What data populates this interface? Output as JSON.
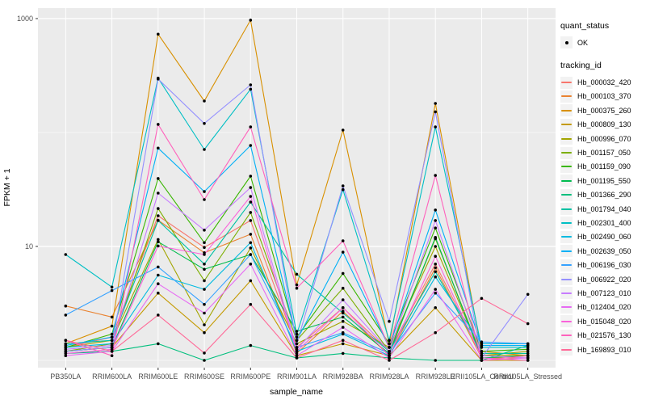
{
  "chart_data": {
    "type": "line",
    "title": "",
    "xlabel": "sample_name",
    "ylabel": "FPKM + 1",
    "y_scale": "log10",
    "ylim": [
      0.87,
      1230
    ],
    "y_major_breaks": [
      10,
      1000
    ],
    "y_minor_breaks": [
      1,
      100
    ],
    "y_tick_labels": [
      "10",
      "1000"
    ],
    "grid": true,
    "point_color": "#000000",
    "panel_bg": "#EBEBEB",
    "categories": [
      "PB350LA",
      "RRIM600LA",
      "RRIM600LE",
      "RRIM600SE",
      "RRIM600PE",
      "RRIM901LA",
      "RRIM928BA",
      "RRIM928LA",
      "RRIM928LE",
      "RRII105LA_Control",
      "RRII105LA_Stressed"
    ],
    "series": [
      {
        "name": "Hb_000032_420",
        "color": "#F8766D",
        "values": [
          1.3,
          1.6,
          18.6,
          9.8,
          16.9,
          1.3,
          2.9,
          1.2,
          7.0,
          1.1,
          1.1
        ]
      },
      {
        "name": "Hb_000103_370",
        "color": "#EA8331",
        "values": [
          3.0,
          2.4,
          17.0,
          8.8,
          12.8,
          1.15,
          2.7,
          1.1,
          6.5,
          1.05,
          1.05
        ]
      },
      {
        "name": "Hb_000375_260",
        "color": "#D89000",
        "values": [
          1.4,
          2.0,
          730,
          189,
          970,
          4.6,
          105,
          1.4,
          180,
          1.2,
          1.1
        ]
      },
      {
        "name": "Hb_000809_130",
        "color": "#C49A00",
        "values": [
          1.2,
          1.3,
          3.9,
          1.75,
          5.0,
          1.1,
          1.4,
          1.1,
          2.9,
          1.0,
          1.0
        ]
      },
      {
        "name": "Hb_000996_070",
        "color": "#A3A500",
        "values": [
          1.3,
          1.5,
          11.5,
          2.05,
          9.7,
          1.4,
          2.2,
          1.3,
          10.0,
          1.1,
          1.2
        ]
      },
      {
        "name": "Hb_001157_050",
        "color": "#7CAE00",
        "values": [
          1.2,
          1.4,
          21.5,
          5.0,
          19.9,
          1.5,
          4.3,
          1.2,
          11.7,
          1.1,
          1.1
        ]
      },
      {
        "name": "Hb_001159_090",
        "color": "#39B600",
        "values": [
          1.3,
          1.7,
          39.5,
          10.8,
          41.4,
          1.6,
          5.8,
          1.4,
          14.5,
          1.2,
          1.25
        ]
      },
      {
        "name": "Hb_001195_550",
        "color": "#00BB4E",
        "values": [
          1.2,
          1.3,
          11.0,
          6.3,
          8.5,
          1.8,
          2.4,
          1.15,
          12.0,
          1.05,
          1.1
        ]
      },
      {
        "name": "Hb_001366_290",
        "color": "#00BF7D",
        "values": [
          1.15,
          1.2,
          1.4,
          1.0,
          1.35,
          1.05,
          1.15,
          1.05,
          1.0,
          1.0,
          1.35
        ]
      },
      {
        "name": "Hb_001794_040",
        "color": "#00C1A3",
        "values": [
          1.4,
          1.5,
          16.9,
          7.0,
          24.5,
          5.7,
          2.6,
          1.2,
          6.0,
          1.15,
          1.15
        ]
      },
      {
        "name": "Hb_002301_400",
        "color": "#00BFC4",
        "values": [
          8.5,
          4.4,
          300,
          71,
          240,
          1.7,
          31.5,
          1.5,
          112,
          1.3,
          1.3
        ]
      },
      {
        "name": "Hb_002490_060",
        "color": "#00BAE0",
        "values": [
          1.3,
          1.4,
          5.6,
          4.2,
          10.8,
          1.2,
          1.7,
          1.1,
          5.4,
          1.4,
          1.4
        ]
      },
      {
        "name": "Hb_002639_050",
        "color": "#00B0F6",
        "values": [
          1.35,
          1.6,
          73,
          30.3,
          77,
          1.5,
          8.9,
          1.3,
          20.9,
          1.35,
          1.35
        ]
      },
      {
        "name": "Hb_006196_030",
        "color": "#35A2FF",
        "values": [
          2.5,
          4.1,
          6.6,
          3.1,
          8.5,
          1.3,
          1.75,
          1.15,
          3.9,
          1.45,
          1.4
        ]
      },
      {
        "name": "Hb_006922_020",
        "color": "#9590FF",
        "values": [
          1.2,
          1.3,
          295,
          120,
          262,
          1.4,
          34,
          2.2,
          152,
          1.05,
          3.8
        ]
      },
      {
        "name": "Hb_007123_010",
        "color": "#C77CFF",
        "values": [
          1.25,
          1.35,
          29.4,
          13.9,
          32.9,
          1.25,
          3.4,
          1.2,
          16.9,
          1.1,
          1.05
        ]
      },
      {
        "name": "Hb_012404_020",
        "color": "#E76BF3",
        "values": [
          1.1,
          1.2,
          4.7,
          2.6,
          7.0,
          1.1,
          1.95,
          1.05,
          4.2,
          1.0,
          1.05
        ]
      },
      {
        "name": "Hb_015048_020",
        "color": "#FA62DB",
        "values": [
          1.15,
          1.25,
          10.1,
          8.5,
          27.5,
          1.2,
          2.9,
          1.1,
          8.2,
          1.05,
          1.0
        ]
      },
      {
        "name": "Hb_021576_130",
        "color": "#FF62BC",
        "values": [
          1.5,
          1.1,
          118,
          25.8,
          112,
          4.3,
          11.2,
          1.3,
          42,
          1.0,
          1.1
        ]
      },
      {
        "name": "Hb_169893_010",
        "color": "#FF6A98",
        "values": [
          1.5,
          1.2,
          2.5,
          1.16,
          3.1,
          1.05,
          1.5,
          1.0,
          1.75,
          3.5,
          2.1
        ]
      }
    ],
    "legend": {
      "position": "right",
      "quant_title": "quant_status",
      "quant_ok_label": "OK",
      "tracking_title": "tracking_id"
    },
    "colors": {
      "panel_background": "#EBEBEB",
      "gridline": "#FFFFFF",
      "tick_text": "#4D4D4D",
      "tick_mark": "#333333",
      "legend_key_bg": "#F2F2F2"
    }
  }
}
